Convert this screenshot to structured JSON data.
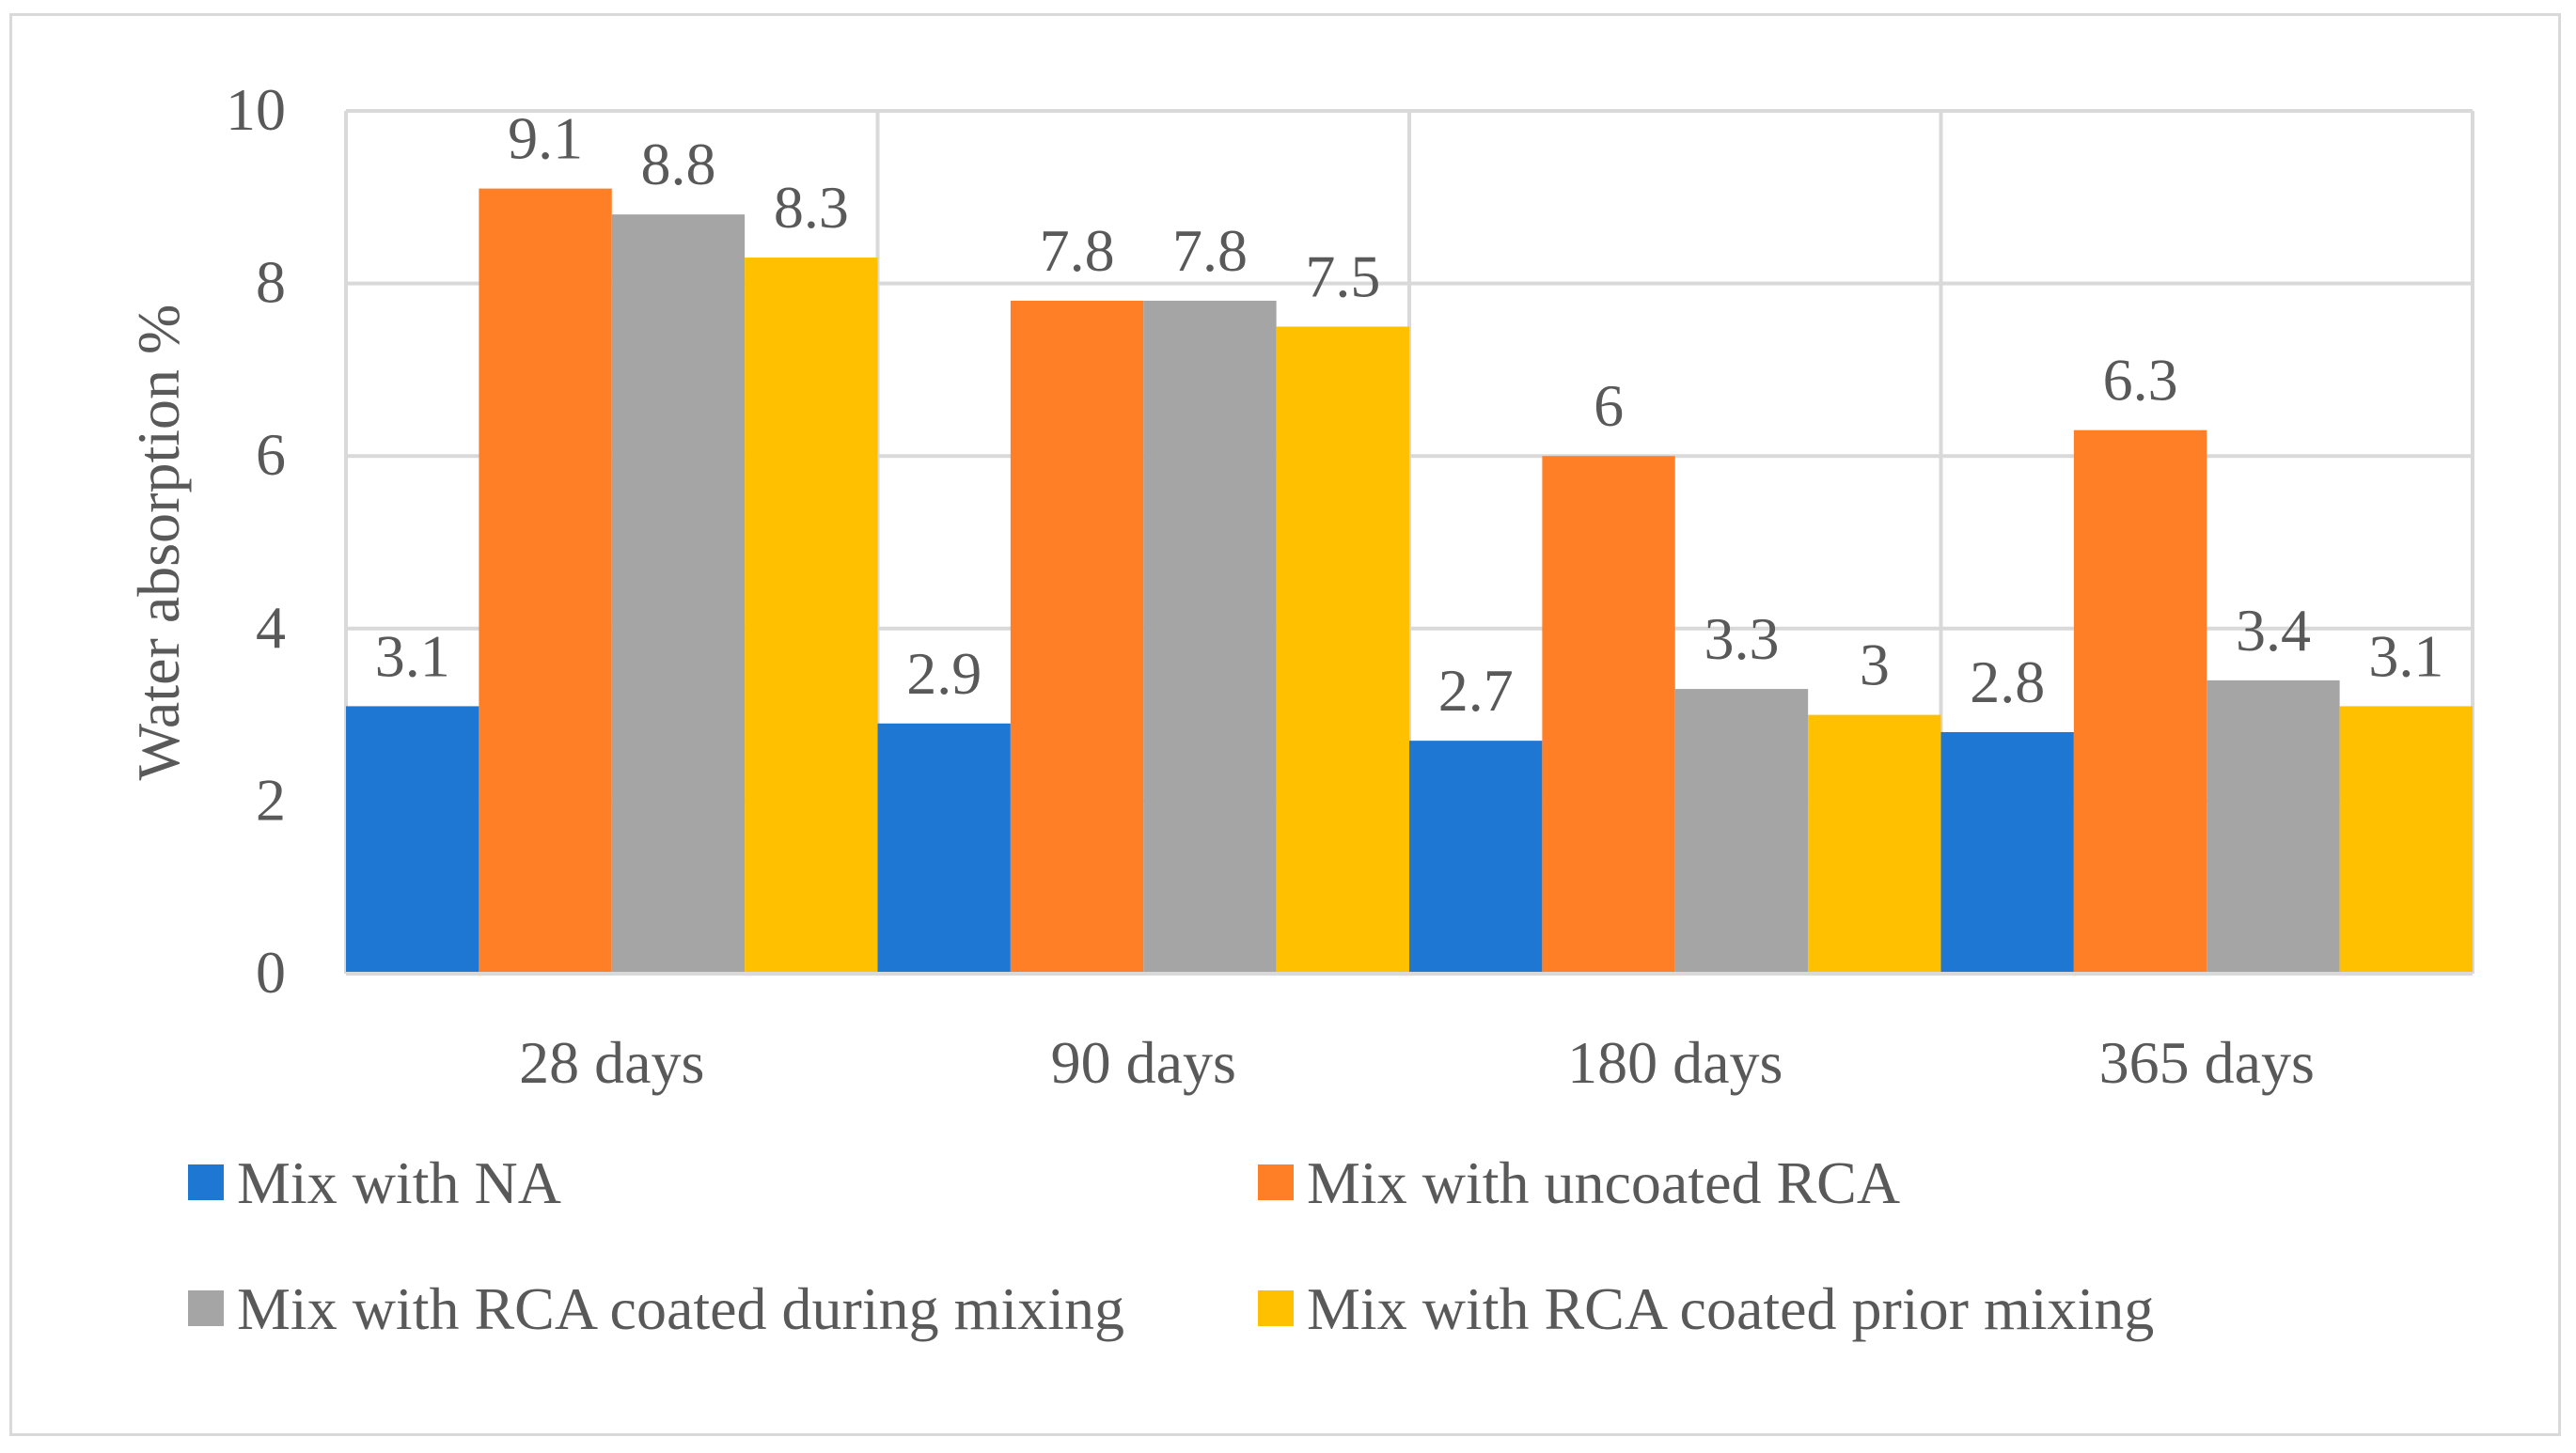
{
  "chart_data": {
    "type": "bar",
    "title": "",
    "xlabel": "",
    "ylabel": "Water absorption %",
    "ylim": [
      0,
      10
    ],
    "yticks": [
      0,
      2,
      4,
      6,
      8,
      10
    ],
    "grid": true,
    "legend_position": "bottom",
    "categories": [
      "28 days",
      "90 days",
      "180 days",
      "365 days"
    ],
    "series": [
      {
        "name": "Mix with NA",
        "color": "#1f77d4",
        "values": [
          3.1,
          2.9,
          2.7,
          2.8
        ],
        "labels": [
          "3.1",
          "2.9",
          "2.7",
          "2.8"
        ]
      },
      {
        "name": "Mix with uncoated RCA",
        "color": "#ff7f27",
        "values": [
          9.1,
          7.8,
          6,
          6.3
        ],
        "labels": [
          "9.1",
          "7.8",
          "6",
          "6.3"
        ]
      },
      {
        "name": "Mix with RCA coated during mixing",
        "color": "#a5a5a5",
        "values": [
          8.8,
          7.8,
          3.3,
          3.4
        ],
        "labels": [
          "8.8",
          "7.8",
          "3.3",
          "3.4"
        ]
      },
      {
        "name": "Mix with RCA coated prior mixing",
        "color": "#ffc000",
        "values": [
          8.3,
          7.5,
          3,
          3.1
        ],
        "labels": [
          "8.3",
          "7.5",
          "3",
          "3.1"
        ]
      }
    ]
  }
}
